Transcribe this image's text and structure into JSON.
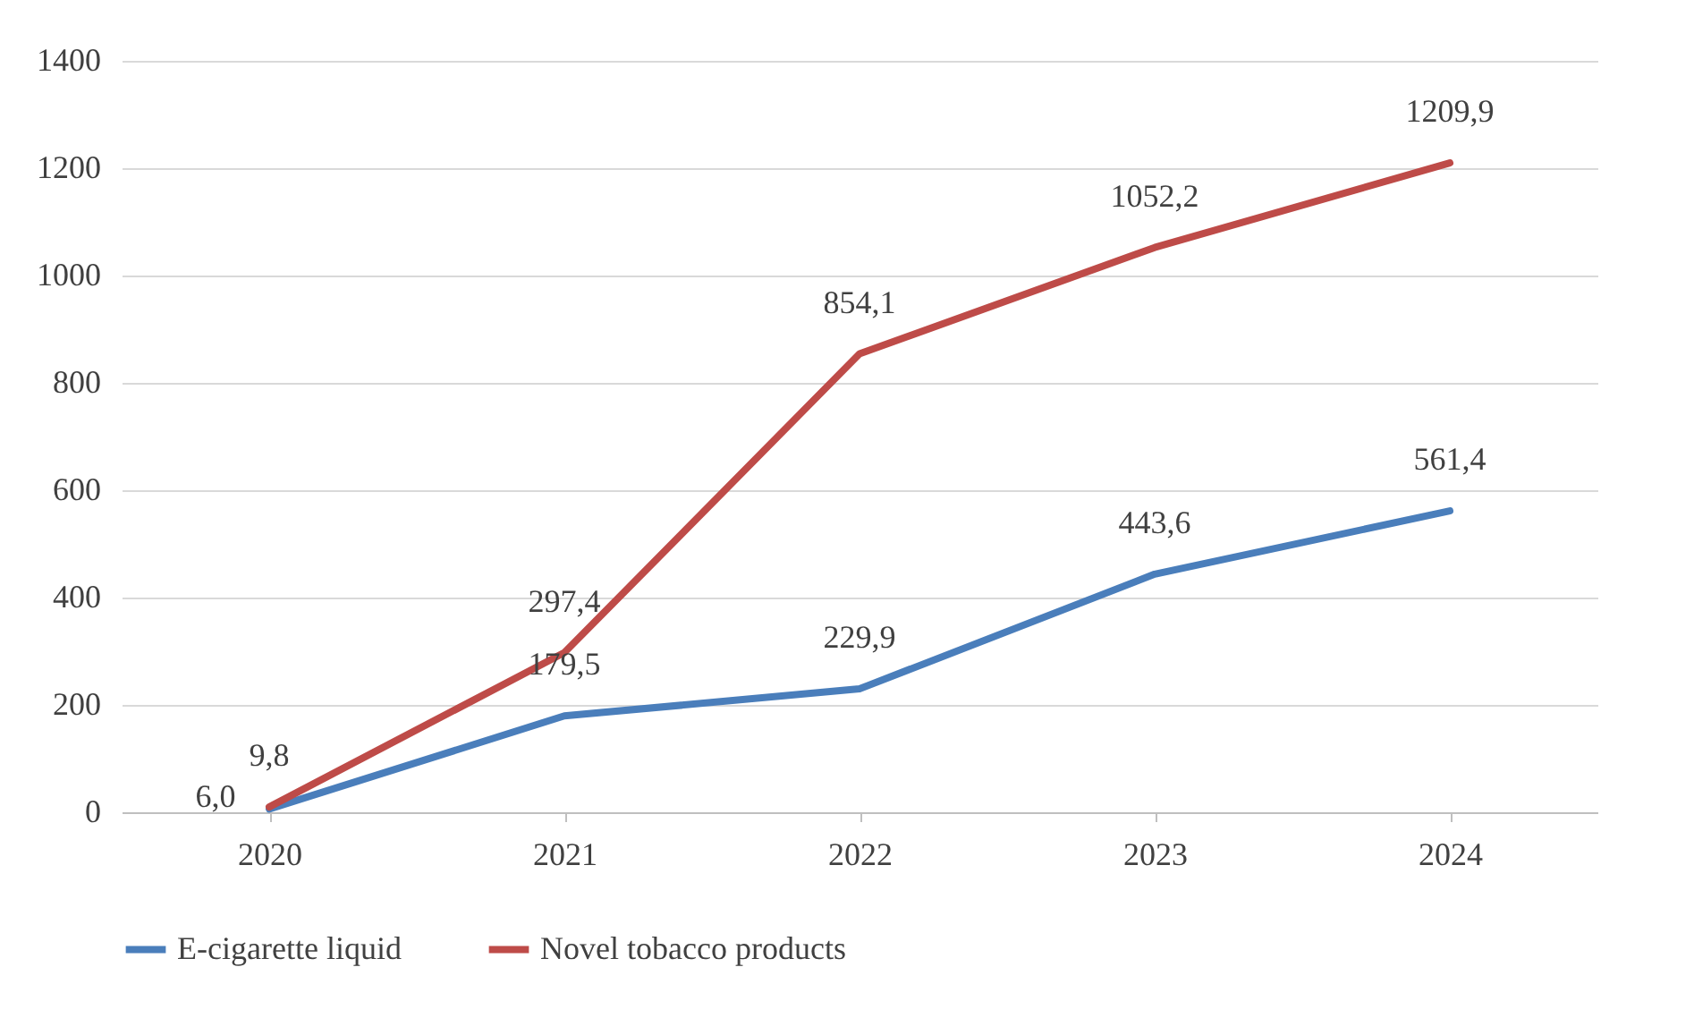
{
  "chart_data": {
    "type": "line",
    "categories": [
      "2020",
      "2021",
      "2022",
      "2023",
      "2024"
    ],
    "series": [
      {
        "name": "E-cigarette liquid",
        "color": "#4a7ebb",
        "values": [
          6.0,
          179.5,
          229.9,
          443.6,
          561.4
        ],
        "value_labels": [
          "6,0",
          "179,5",
          "229,9",
          "443,6",
          "561,4"
        ]
      },
      {
        "name": "Novel tobacco products",
        "color": "#be4b48",
        "values": [
          9.8,
          297.4,
          854.1,
          1052.2,
          1209.9
        ],
        "value_labels": [
          "9,8",
          "297,4",
          "854,1",
          "1052,2",
          "1209,9"
        ]
      }
    ],
    "ylim": [
      0,
      1400
    ],
    "yticks": [
      0,
      200,
      400,
      600,
      800,
      1000,
      1200,
      1400
    ],
    "grid": "y",
    "legend": "bottom",
    "marker": "none",
    "line_style": "solid"
  }
}
